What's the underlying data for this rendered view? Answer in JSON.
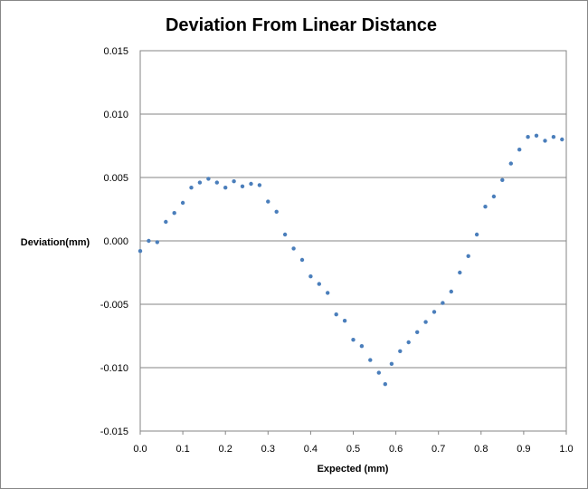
{
  "chart_data": {
    "type": "scatter",
    "title": "Deviation From Linear Distance",
    "xlabel": "Expected (mm)",
    "ylabel": "Deviation(mm)",
    "xlim": [
      0.0,
      1.0
    ],
    "ylim": [
      -0.015,
      0.015
    ],
    "x_ticks": [
      "0.0",
      "0.1",
      "0.2",
      "0.3",
      "0.4",
      "0.5",
      "0.6",
      "0.7",
      "0.8",
      "0.9",
      "1.0"
    ],
    "y_ticks": [
      "0.015",
      "0.010",
      "0.005",
      "0.000",
      "-0.005",
      "-0.010",
      "-0.015"
    ],
    "grid": "horizontal",
    "legend": "none",
    "series_color": "#4a7ebb",
    "series": [
      {
        "x": [
          0.0,
          0.02,
          0.04,
          0.06,
          0.08,
          0.1,
          0.12,
          0.14,
          0.16,
          0.18,
          0.2,
          0.22,
          0.24,
          0.26,
          0.28,
          0.3,
          0.32,
          0.34,
          0.36,
          0.38,
          0.4,
          0.42,
          0.44,
          0.46,
          0.48,
          0.5,
          0.52,
          0.54,
          0.56,
          0.575,
          0.59,
          0.61,
          0.63,
          0.65,
          0.67,
          0.69,
          0.71,
          0.73,
          0.75,
          0.77,
          0.79,
          0.81,
          0.83,
          0.85,
          0.87,
          0.89,
          0.91,
          0.93,
          0.95,
          0.97,
          0.99
        ],
        "y": [
          -0.0008,
          0.0,
          -0.0001,
          0.0015,
          0.0022,
          0.003,
          0.0042,
          0.0046,
          0.0049,
          0.0046,
          0.0042,
          0.0047,
          0.0043,
          0.0045,
          0.0044,
          0.0031,
          0.0023,
          0.0005,
          -0.0006,
          -0.0015,
          -0.0028,
          -0.0034,
          -0.0041,
          -0.0058,
          -0.0063,
          -0.0078,
          -0.0083,
          -0.0094,
          -0.0104,
          -0.0113,
          -0.0097,
          -0.0087,
          -0.008,
          -0.0072,
          -0.0064,
          -0.0056,
          -0.0049,
          -0.004,
          -0.0025,
          -0.0012,
          0.0005,
          0.0027,
          0.0035,
          0.0048,
          0.0061,
          0.0072,
          0.0082,
          0.0083,
          0.0079,
          0.0082,
          0.008
        ]
      }
    ]
  }
}
